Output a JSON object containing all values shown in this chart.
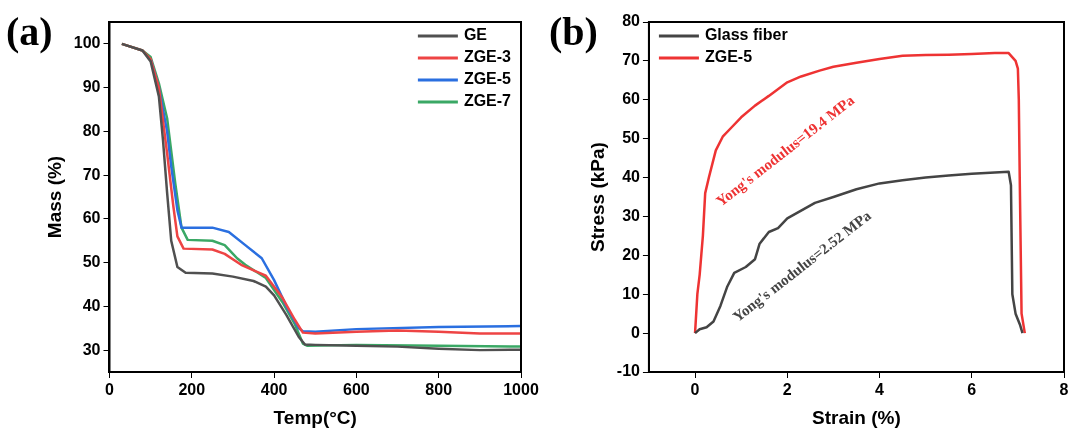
{
  "chart_data": [
    {
      "type": "line",
      "title": "(a)",
      "xlabel": "Temp(°C)",
      "ylabel": "Mass (%)",
      "xlim": [
        0,
        1000
      ],
      "xticks": [
        0,
        200,
        400,
        600,
        800,
        1000
      ],
      "ylim": [
        25,
        105
      ],
      "yticks": [
        30,
        40,
        50,
        60,
        70,
        80,
        90,
        100
      ],
      "grid": false,
      "legend": "top right",
      "marker": "none",
      "line_style": "solid",
      "series": [
        {
          "name": "GE",
          "color": "#505050",
          "x": [
            30,
            80,
            100,
            120,
            130,
            140,
            150,
            165,
            185,
            250,
            300,
            350,
            380,
            400,
            430,
            460,
            475,
            500,
            600,
            700,
            800,
            900,
            1000
          ],
          "values": [
            100,
            98.5,
            96,
            88,
            78,
            66,
            55,
            49,
            47.7,
            47.5,
            46.8,
            45.8,
            44.5,
            42.5,
            38,
            33,
            31.3,
            31.2,
            31,
            30.8,
            30.3,
            30,
            30.1
          ]
        },
        {
          "name": "ZGE-3",
          "color": "#ee4444",
          "x": [
            30,
            80,
            100,
            120,
            140,
            155,
            165,
            180,
            250,
            280,
            320,
            380,
            420,
            450,
            470,
            500,
            600,
            700,
            800,
            900,
            1000
          ],
          "values": [
            100,
            98.5,
            96.5,
            90,
            75,
            63,
            56,
            53.2,
            53,
            52,
            49.5,
            47,
            42,
            37,
            34,
            33.8,
            34.2,
            34.5,
            34.2,
            33.8,
            33.8
          ]
        },
        {
          "name": "ZGE-5",
          "color": "#2a6fe0",
          "x": [
            100,
            120,
            140,
            150,
            165,
            175,
            250,
            290,
            330,
            370,
            400,
            430,
            460,
            470,
            500,
            600,
            800,
            1000
          ],
          "values": [
            96.5,
            90,
            80,
            72,
            62,
            58,
            58,
            57,
            54,
            51,
            46,
            40,
            35,
            34.3,
            34.2,
            34.8,
            35.3,
            35.5
          ]
        },
        {
          "name": "ZGE-7",
          "color": "#3aa865",
          "x": [
            30,
            80,
            100,
            120,
            140,
            160,
            175,
            190,
            250,
            280,
            310,
            330,
            380,
            420,
            450,
            470,
            480,
            600,
            800,
            1000
          ],
          "values": [
            100,
            98.5,
            97,
            91,
            83,
            68,
            58,
            55.2,
            55,
            54,
            51,
            49.5,
            46.5,
            41,
            36,
            31.5,
            31,
            31.2,
            31,
            30.8
          ]
        }
      ]
    },
    {
      "type": "line",
      "title": "(b)",
      "xlabel": "Strain (%)",
      "ylabel": "Stress (kPa)",
      "xlim": [
        -1,
        8
      ],
      "xticks": [
        0,
        2,
        4,
        6,
        8
      ],
      "ylim": [
        -10,
        80
      ],
      "yticks": [
        -10,
        0,
        10,
        20,
        30,
        40,
        50,
        60,
        70,
        80
      ],
      "grid": false,
      "legend": "top left",
      "marker": "none",
      "line_style": "solid",
      "annotations": [
        "Yong's modulus=2.52 MPa",
        "Yong's modulus=19.4 MPa"
      ],
      "series": [
        {
          "name": "Glass fiber",
          "color": "#444444",
          "x": [
            0,
            0.1,
            0.25,
            0.4,
            0.55,
            0.7,
            0.85,
            1.1,
            1.3,
            1.4,
            1.6,
            1.8,
            2,
            2.3,
            2.6,
            3,
            3.5,
            4,
            4.5,
            5,
            5.5,
            6,
            6.5,
            6.8,
            6.85,
            6.88,
            6.95,
            7.05,
            7.1
          ],
          "values": [
            0,
            1,
            1.5,
            3,
            7,
            12,
            15.5,
            17,
            19,
            23,
            26,
            27,
            29.5,
            31.5,
            33.5,
            35,
            37,
            38.5,
            39.3,
            40,
            40.5,
            41,
            41.3,
            41.5,
            38,
            10,
            5,
            2,
            0
          ]
        },
        {
          "name": "ZGE-5",
          "color": "#ee3333",
          "x": [
            0,
            0.05,
            0.1,
            0.17,
            0.22,
            0.3,
            0.45,
            0.6,
            0.8,
            1,
            1.3,
            1.6,
            2,
            2.3,
            2.7,
            3,
            3.5,
            4,
            4.5,
            5,
            5.5,
            6,
            6.5,
            6.8,
            6.95,
            7,
            7.02,
            7.04,
            7.08,
            7.15
          ],
          "values": [
            0,
            10,
            15,
            25,
            36,
            40,
            47,
            50.5,
            53,
            55.5,
            58.5,
            61,
            64.5,
            66,
            67.5,
            68.5,
            69.5,
            70.5,
            71.3,
            71.5,
            71.6,
            71.8,
            72,
            72,
            70,
            68,
            60,
            40,
            5,
            0
          ]
        }
      ]
    }
  ]
}
